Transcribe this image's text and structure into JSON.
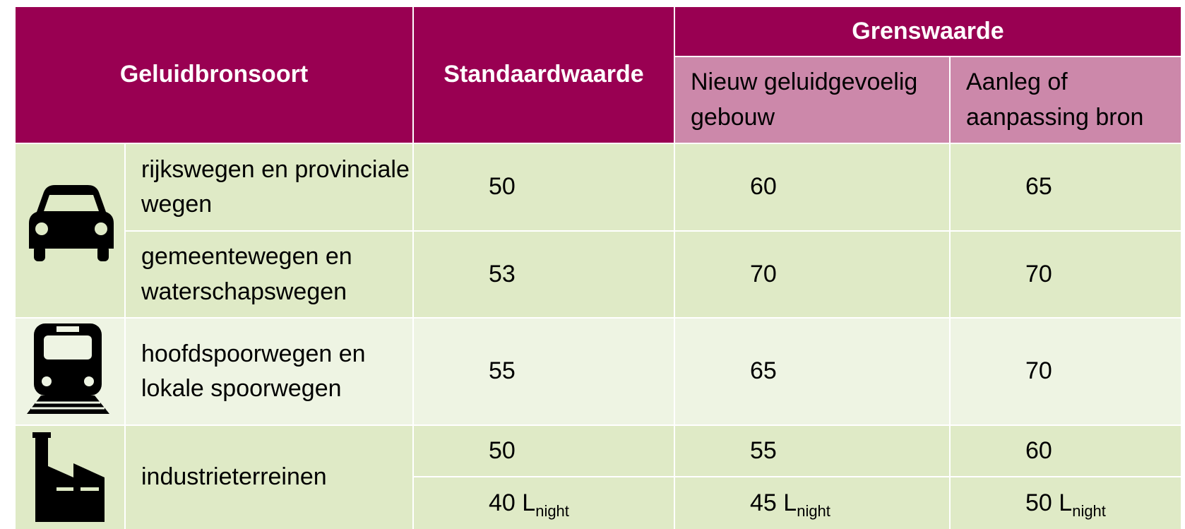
{
  "header": {
    "source": "Geluidbronsoort",
    "standard": "Standaardwaarde",
    "limit": "Grenswaarde",
    "limit_new": "Nieuw geluidgevoelig gebouw",
    "limit_change": "Aanleg of aanpassing bron"
  },
  "rows": [
    {
      "label": "rijkswegen en provinciale wegen",
      "values": [
        50,
        60,
        65
      ]
    },
    {
      "label": "gemeentewegen en waterschapswegen",
      "values": [
        53,
        70,
        70
      ]
    },
    {
      "label": "hoofdspoorwegen en lokale spoorwegen",
      "values": [
        55,
        65,
        70
      ]
    },
    {
      "label": "industrieterreinen",
      "values": [
        50,
        55,
        60
      ],
      "night_values": [
        {
          "value": 40,
          "unit": "L",
          "sub": "night"
        },
        {
          "value": 45,
          "unit": "L",
          "sub": "night"
        },
        {
          "value": 50,
          "unit": "L",
          "sub": "night"
        }
      ]
    }
  ]
}
